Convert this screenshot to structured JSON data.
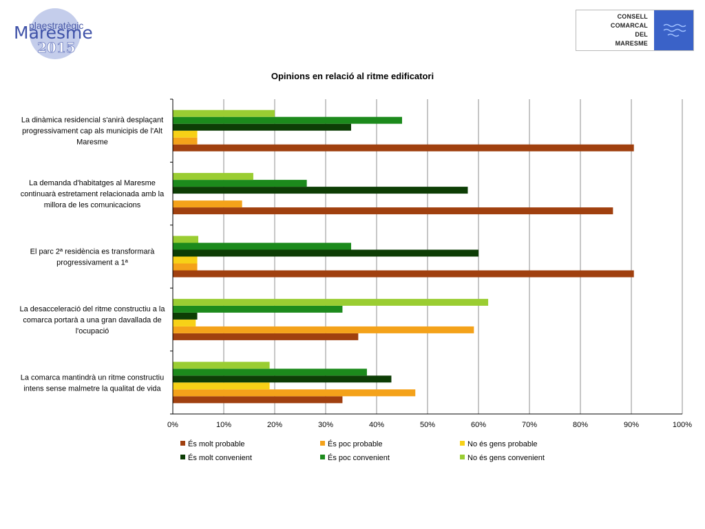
{
  "logos": {
    "left": {
      "line1": "plaestratègic",
      "line2": "Maresme",
      "line3": "2015"
    },
    "right": {
      "lines": [
        "CONSELL",
        "COMARCAL",
        "DEL",
        "MARESME"
      ]
    }
  },
  "chart_data": {
    "type": "bar",
    "orientation": "horizontal",
    "title": "Opinions en relació al ritme edificatori",
    "xlim": [
      0,
      100
    ],
    "x_ticks": [
      "0%",
      "10%",
      "20%",
      "30%",
      "40%",
      "50%",
      "60%",
      "70%",
      "80%",
      "90%",
      "100%"
    ],
    "grid": true,
    "legend_position": "bottom",
    "categories": [
      "La dinàmica residencial s'anirà desplaçant progressivament cap als municipis de l'Alt Maresme",
      "La demanda d'habitatges al Maresme continuarà estretament relacionada amb la millora de les comunicacions",
      "El parc 2ª residència es transformarà progressivament a 1ª",
      "La desacceleració del ritme constructiu a la comarca portarà a una gran davallada de l'ocupació",
      "La comarca mantindrà un ritme constructiu intens sense malmetre la qualitat de vida"
    ],
    "category_lines": [
      [
        "La dinàmica residencial s'anirà desplaçant",
        "progressivament cap als municipis de l'Alt",
        "Maresme"
      ],
      [
        "La demanda d'habitatges al Maresme",
        "continuarà estretament relacionada amb la",
        "millora de les comunicacions"
      ],
      [
        "El parc 2ª residència es transformarà",
        "progressivament a 1ª"
      ],
      [
        "La desacceleració del ritme constructiu a la",
        "comarca portarà a una gran davallada de",
        "l'ocupació"
      ],
      [
        "La comarca mantindrà un ritme constructiu",
        "intens sense malmetre la qualitat de vida"
      ]
    ],
    "series": [
      {
        "name": "És molt probable",
        "color": "#a0400f",
        "values": [
          90.5,
          86.4,
          90.5,
          36.4,
          33.3
        ]
      },
      {
        "name": "És poc probable",
        "color": "#f4a21a",
        "values": [
          4.8,
          13.6,
          4.8,
          59.1,
          47.6
        ]
      },
      {
        "name": "No és gens probable",
        "color": "#f7d117",
        "values": [
          4.8,
          0,
          4.8,
          4.5,
          19.0
        ]
      },
      {
        "name": "És molt convenient",
        "color": "#0d3d05",
        "values": [
          35.0,
          57.9,
          60.0,
          4.8,
          42.9
        ]
      },
      {
        "name": "És poc convenient",
        "color": "#1c8a1c",
        "values": [
          45.0,
          26.3,
          35.0,
          33.3,
          38.1
        ]
      },
      {
        "name": "No és gens convenient",
        "color": "#9acd32",
        "values": [
          20.0,
          15.8,
          5.0,
          61.9,
          19.0
        ]
      }
    ]
  }
}
